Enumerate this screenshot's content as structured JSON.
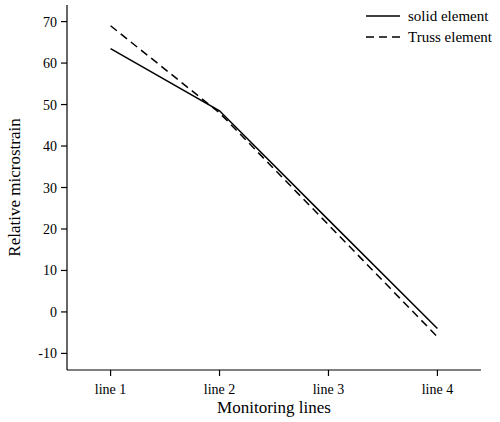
{
  "chart_data": {
    "type": "line",
    "x_label": "Monitoring lines",
    "y_label": "Relative microstrain",
    "categories": [
      "line 1",
      "line 2",
      "line 3",
      "line 4"
    ],
    "series": [
      {
        "name": "solid element",
        "color": "#000000",
        "line_style": "solid",
        "values": [
          63.5,
          48.5,
          22.2,
          -4
        ]
      },
      {
        "name": "Truss element",
        "color": "#000000",
        "line_style": "dashed",
        "values": [
          69,
          48,
          21,
          -6
        ]
      }
    ],
    "ylim": [
      -14,
      74
    ],
    "yticks": [
      -10,
      0,
      10,
      20,
      30,
      40,
      50,
      60,
      70
    ],
    "legend": "top-right",
    "grid": false
  }
}
